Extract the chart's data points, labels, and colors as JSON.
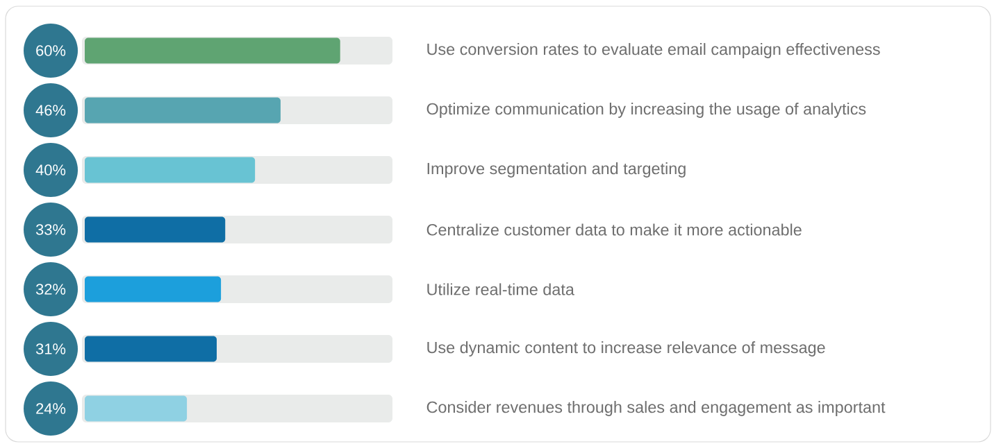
{
  "chart_data": {
    "type": "bar",
    "orientation": "horizontal",
    "categories": [
      "Use conversion rates to evaluate email campaign effectiveness",
      "Optimize communication by increasing the usage of analytics",
      "Improve segmentation and targeting",
      "Centralize customer data to make it more actionable",
      "Utilize real-time data",
      "Use dynamic content to increase relevance of message",
      "Consider revenues through sales and engagement as important"
    ],
    "values": [
      60,
      46,
      40,
      33,
      32,
      31,
      24
    ],
    "colors": [
      "#5fa472",
      "#57a5b1",
      "#68c3d3",
      "#0f6ea5",
      "#1c9fdc",
      "#0f6ea5",
      "#8fd1e3"
    ],
    "value_labels": [
      "60%",
      "46%",
      "40%",
      "33%",
      "32%",
      "31%",
      "24%"
    ]
  }
}
